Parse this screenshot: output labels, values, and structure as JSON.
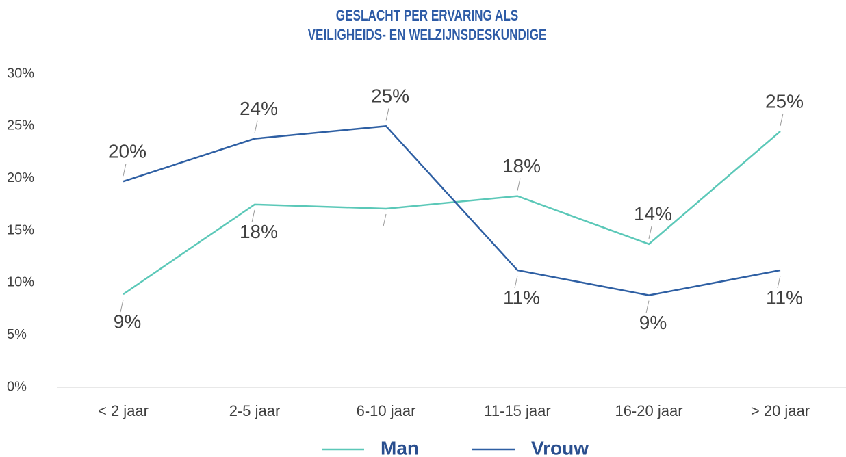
{
  "chart_data": {
    "type": "line",
    "title": [
      "GESLACHT PER ERVARING ALS",
      "VEILIGHEIDS- EN WELZIJNSDESKUNDIGE"
    ],
    "categories": [
      "< 2 jaar",
      "2-5 jaar",
      "6-10 jaar",
      "11-15 jaar",
      "16-20 jaar",
      "> 20 jaar"
    ],
    "series": [
      {
        "name": "Man",
        "color": "#5bc8b8",
        "values": [
          8.9,
          17.5,
          17.1,
          18.3,
          13.7,
          24.5
        ],
        "value_labels": [
          "9%",
          "18%",
          null,
          "18%",
          "14%",
          "25%"
        ]
      },
      {
        "name": "Vrouw",
        "color": "#2e5fa3",
        "values": [
          19.7,
          23.8,
          25.0,
          11.2,
          8.8,
          11.2
        ],
        "value_labels": [
          "20%",
          "24%",
          "25%",
          "11%",
          "9%",
          "11%"
        ]
      }
    ],
    "ylim": [
      0,
      30
    ],
    "yticks": [
      {
        "value": 0,
        "label": "0%"
      },
      {
        "value": 5,
        "label": "5%"
      },
      {
        "value": 10,
        "label": "10%"
      },
      {
        "value": 15,
        "label": "15%"
      },
      {
        "value": 20,
        "label": "20%"
      },
      {
        "value": 25,
        "label": "25%"
      },
      {
        "value": 30,
        "label": "30%"
      }
    ],
    "legend": "bottom"
  }
}
